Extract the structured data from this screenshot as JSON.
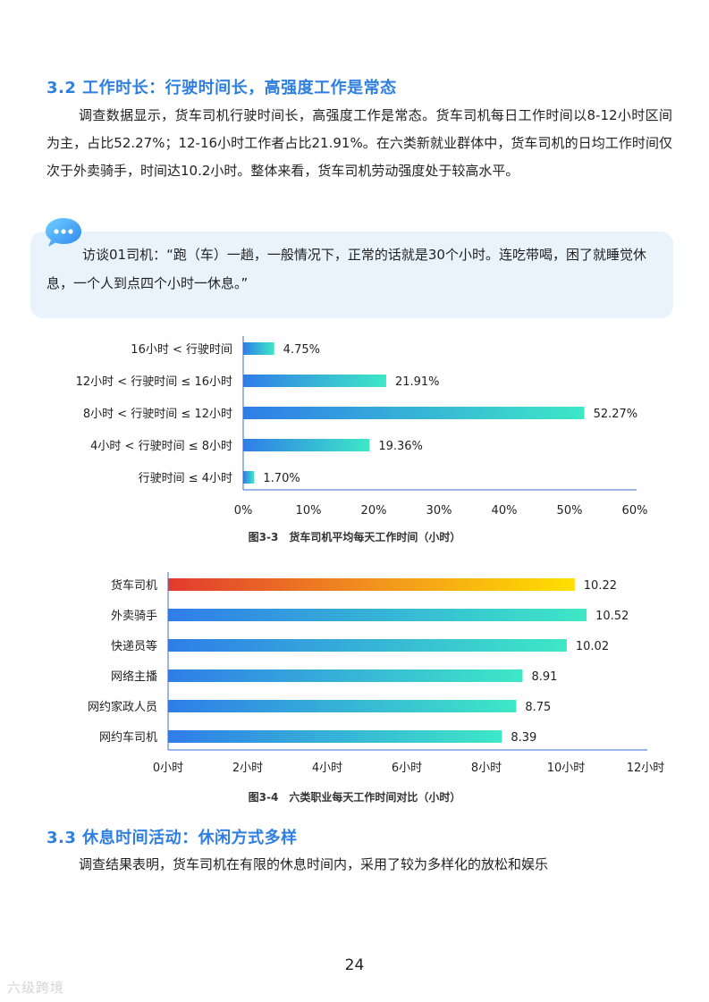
{
  "section_32": {
    "heading": "3.2 工作时长：行驶时间长，高强度工作是常态",
    "paragraph": "调查数据显示，货车司机行驶时间长，高强度工作是常态。货车司机每日工作时间以8-12小时区间为主，占比52.27%；12-16小时工作者占比21.91%。在六类新就业群体中，货车司机的日均工作时间仅次于外卖骑手，时间达10.2小时。整体来看，货车司机劳动强度处于较高水平。"
  },
  "interview": {
    "text": "访谈01司机：“跑（车）一趟，一般情况下，正常的话就是30个小时。连吃带喝，困了就睡觉休息，一个人到点四个小时一休息。”",
    "icon": "chat-bubble-icon"
  },
  "colors": {
    "accent": "#2f7fe0",
    "bar_gradient_start": "#2f7de8",
    "bar_gradient_end": "#3de8c6",
    "highlight_gradient_start": "#e23a2e",
    "highlight_gradient_end": "#ffe000",
    "axis": "#3a6fc8"
  },
  "chart_data": [
    {
      "type": "bar",
      "orientation": "horizontal",
      "title": "图3-3　货车司机平均每天工作时间（小时）",
      "categories": [
        "16小时 < 行驶时间",
        "12小时 < 行驶时间 ≤ 16小时",
        "8小时 < 行驶时间 ≤ 12小时",
        "4小时 < 行驶时间 ≤ 8小时",
        "行驶时间 ≤ 4小时"
      ],
      "values": [
        4.75,
        21.91,
        52.27,
        19.36,
        1.7
      ],
      "value_labels": [
        "4.75%",
        "21.91%",
        "52.27%",
        "19.36%",
        "1.70%"
      ],
      "xlim": [
        0,
        60
      ],
      "x_ticks": [
        "0%",
        "10%",
        "20%",
        "30%",
        "40%",
        "50%",
        "60%"
      ],
      "grid": false
    },
    {
      "type": "bar",
      "orientation": "horizontal",
      "title": "图3-4　六类职业每天工作时间对比（小时）",
      "categories": [
        "货车司机",
        "外卖骑手",
        "快递员等",
        "网络主播",
        "网约家政人员",
        "网约车司机"
      ],
      "values": [
        10.22,
        10.52,
        10.02,
        8.91,
        8.75,
        8.39
      ],
      "value_labels": [
        "10.22",
        "10.52",
        "10.02",
        "8.91",
        "8.75",
        "8.39"
      ],
      "highlight": "货车司机",
      "xlim": [
        0,
        12
      ],
      "x_ticks": [
        "0小时",
        "2小时",
        "4小时",
        "6小时",
        "8小时",
        "10小时",
        "12小时"
      ],
      "grid": false
    }
  ],
  "section_33": {
    "heading": "3.3 休息时间活动：休闲方式多样",
    "paragraph": "调查结果表明，货车司机在有限的休息时间内，采用了较为多样化的放松和娱乐"
  },
  "page_number": "24",
  "watermark": "六级跨境"
}
